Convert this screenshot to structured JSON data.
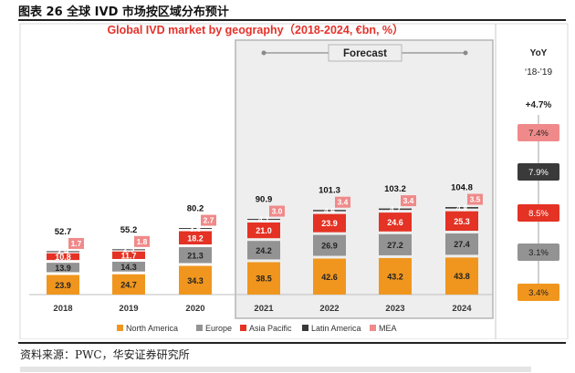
{
  "caption": "图表 26 全球 IVD 市场按区域分布预计",
  "source": "资料来源：PWC，华安证券研究所",
  "chart_data": {
    "type": "bar",
    "stacked": true,
    "title": "Global IVD market by geography（2018-2024, €bn, %）",
    "forecast_label": "Forecast",
    "categories": [
      "2018",
      "2019",
      "2020",
      "2021",
      "2022",
      "2023",
      "2024"
    ],
    "totals": [
      "52.7",
      "55.2",
      "80.2",
      "90.9",
      "101.3",
      "103.2",
      "104.8"
    ],
    "series": [
      {
        "name": "North America",
        "color": "#f0961e",
        "values": [
          23.9,
          24.7,
          34.3,
          38.5,
          42.6,
          43.2,
          43.8
        ]
      },
      {
        "name": "Europe",
        "color": "#939393",
        "values": [
          13.9,
          14.3,
          21.3,
          24.2,
          26.9,
          27.2,
          27.4
        ]
      },
      {
        "name": "Asia Pacific",
        "color": "#e43224",
        "values": [
          10.8,
          11.7,
          18.2,
          21.0,
          23.9,
          24.6,
          25.3
        ]
      },
      {
        "name": "Latin America",
        "color": "#3a3a3a",
        "values": [
          2.4,
          2.5,
          3.6,
          4.1,
          4.6,
          4.7,
          4.8
        ]
      },
      {
        "name": "MEA",
        "color": "#f08a8a",
        "values": [
          1.7,
          1.8,
          2.7,
          3.0,
          3.4,
          3.4,
          3.5
        ]
      }
    ],
    "value_labels": [
      [
        "23.9",
        "24.7",
        "34.3",
        "38.5",
        "42.6",
        "43.2",
        "43.8"
      ],
      [
        "13.9",
        "14.3",
        "21.3",
        "24.2",
        "26.9",
        "27.2",
        "27.4"
      ],
      [
        "10.8",
        "11.7",
        "18.2",
        "21.0",
        "23.9",
        "24.6",
        "25.3"
      ],
      [
        "2.4",
        "2.5",
        "3.6",
        "4.1",
        "4.6",
        "4.7",
        "4.8"
      ],
      [
        "1.7",
        "1.8",
        "2.7",
        "3.0",
        "3.4",
        "3.4",
        "3.5"
      ]
    ],
    "yoy": {
      "title": "YoY",
      "period": "‘18-’19",
      "total": "+4.7%",
      "items": [
        {
          "label": "7.4%",
          "color": "#f08a8a"
        },
        {
          "label": "7.9%",
          "color": "#3a3a3a"
        },
        {
          "label": "8.5%",
          "color": "#e43224"
        },
        {
          "label": "3.1%",
          "color": "#939393"
        },
        {
          "label": "3.4%",
          "color": "#f0961e"
        }
      ]
    }
  }
}
